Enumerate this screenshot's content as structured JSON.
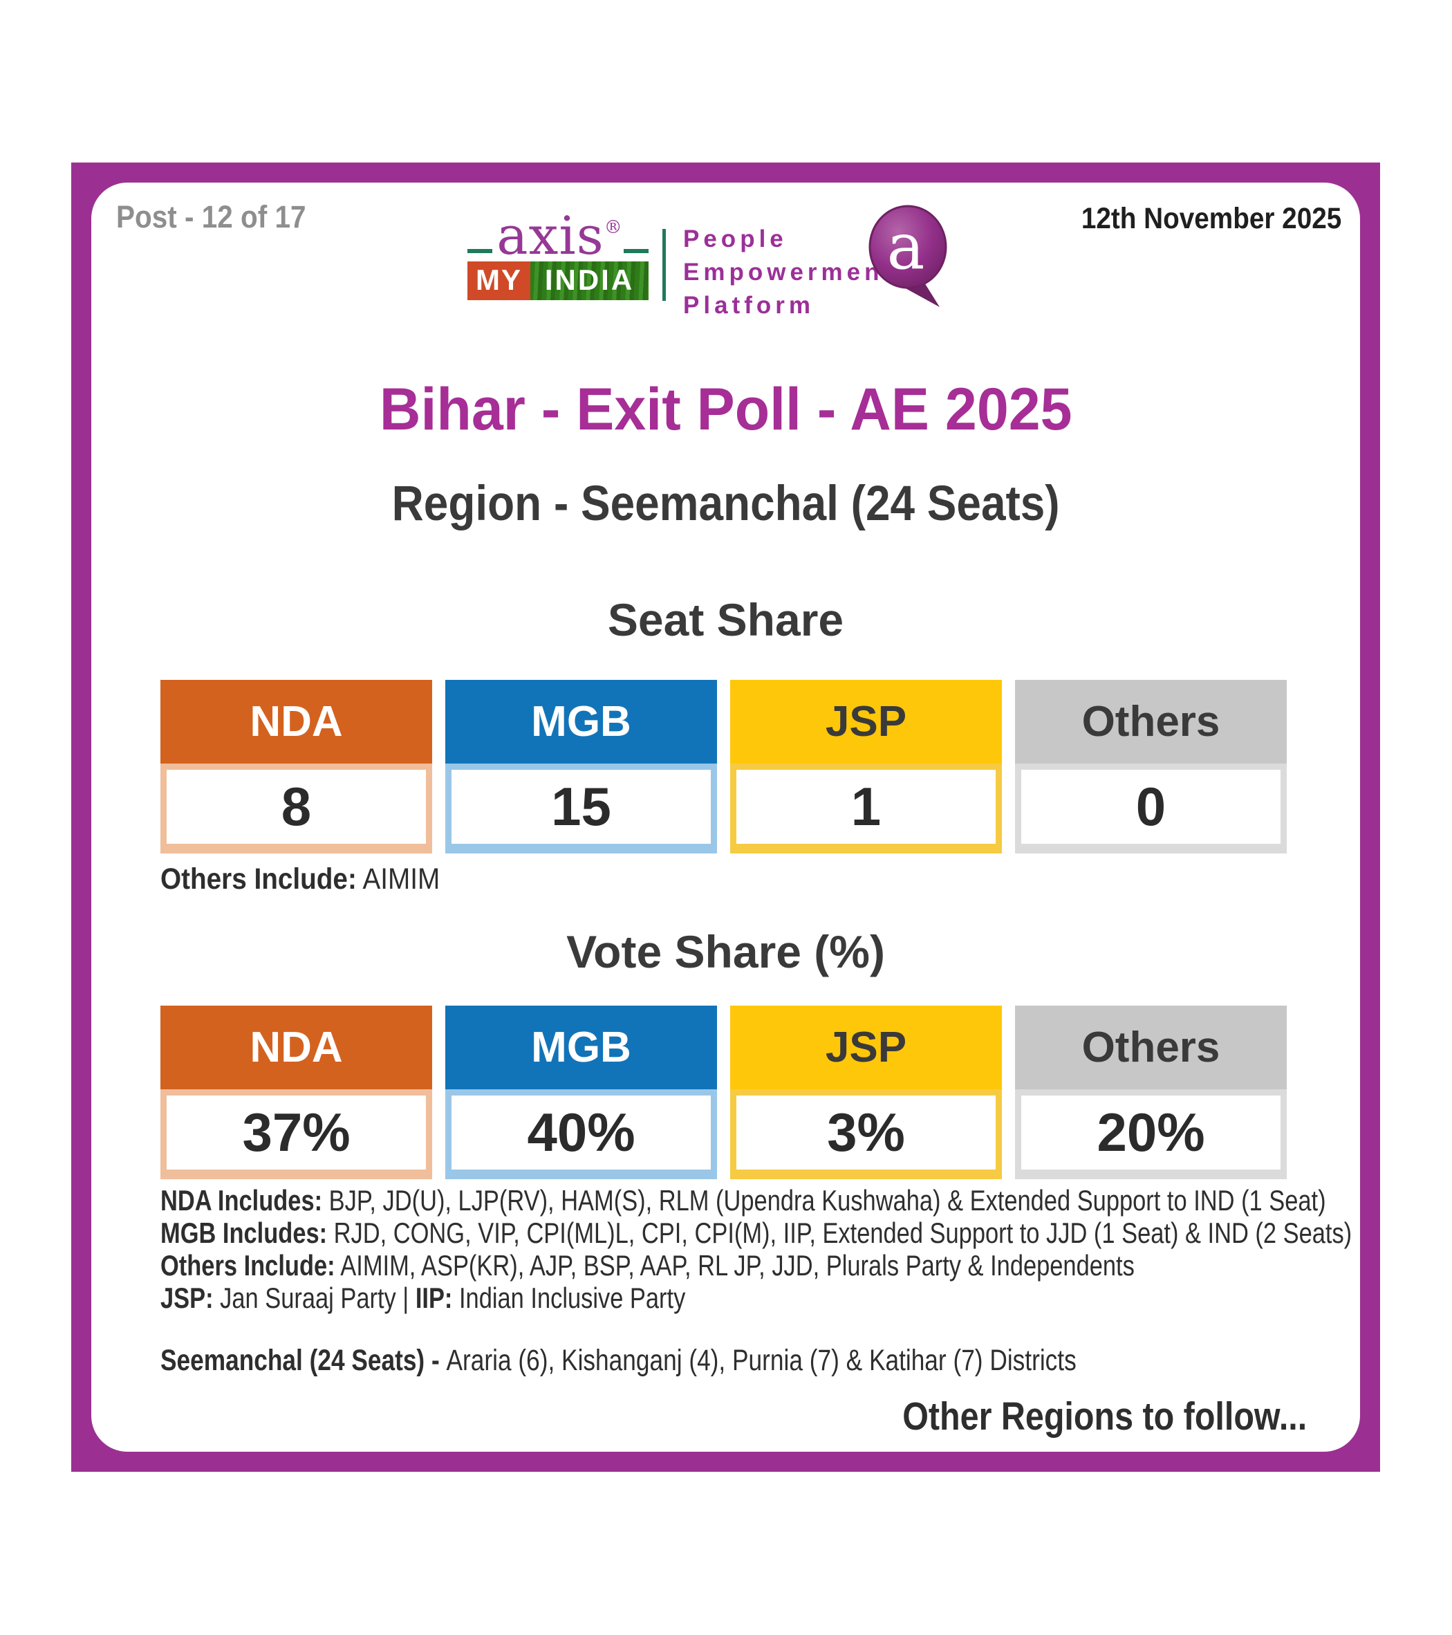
{
  "meta": {
    "post_label": "Post - 12 of 17",
    "date": "12th November 2025"
  },
  "logo": {
    "axis_word": "axis",
    "reg_mark": "®",
    "my": "MY",
    "india": "INDIA",
    "tagline": "People\nEmpowerment\nPlatform",
    "bubble_letter": "a"
  },
  "title": "Bihar - Exit Poll - AE 2025",
  "subtitle": "Region - Seemanchal (24 Seats)",
  "colors": {
    "brand_purple": "#9C3092",
    "title_purple": "#A62E96",
    "teal_green": "#1E7A5B",
    "nda_orange": "#D4621F",
    "mgb_blue": "#1274B8",
    "jsp_yellow": "#FFC709",
    "others_gray": "#C7C7C7"
  },
  "parties": [
    {
      "label": "NDA",
      "header_bg": "#D4621F",
      "header_fg": "#FFFFFF",
      "tint": "#F0BE9B"
    },
    {
      "label": "MGB",
      "header_bg": "#1274B8",
      "header_fg": "#FFFFFF",
      "tint": "#9AC7E8"
    },
    {
      "label": "JSP",
      "header_bg": "#FFC709",
      "header_fg": "#3A3A3A",
      "tint": "#F6CB43"
    },
    {
      "label": "Others",
      "header_bg": "#C7C7C7",
      "header_fg": "#3A3A3A",
      "tint": "#DBDBDB"
    }
  ],
  "seat_share": {
    "heading": "Seat Share",
    "values": [
      "8",
      "15",
      "1",
      "0"
    ],
    "note_bold": "Others Include:",
    "note_rest": " AIMIM"
  },
  "vote_share": {
    "heading": "Vote Share (%)",
    "values": [
      "37%",
      "40%",
      "3%",
      "20%"
    ]
  },
  "footnote_lines": [
    [
      [
        "b",
        "NDA Includes:"
      ],
      [
        "r",
        " BJP, JD(U), LJP(RV), HAM(S), RLM (Upendra Kushwaha) & Extended Support to IND (1 Seat)"
      ]
    ],
    [
      [
        "b",
        "MGB Includes:"
      ],
      [
        "r",
        " RJD, CONG, VIP, CPI(ML)L, CPI, CPI(M), IIP, Extended Support to JJD (1 Seat) & IND (2 Seats)"
      ]
    ],
    [
      [
        "b",
        "Others Include:"
      ],
      [
        "r",
        " AIMIM, ASP(KR), AJP, BSP, AAP, RL JP, JJD, Plurals Party & Independents"
      ]
    ],
    [
      [
        "b",
        "JSP:"
      ],
      [
        "r",
        " Jan Suraaj Party   |   "
      ],
      [
        "b",
        "IIP:"
      ],
      [
        "r",
        " Indian Inclusive Party"
      ]
    ]
  ],
  "district_line": {
    "bold": "Seemanchal (24 Seats) - ",
    "rest": "Araria (6), Kishanganj (4), Purnia (7) & Katihar (7) Districts"
  },
  "footer_note": "Other Regions to follow...",
  "chart_data": [
    {
      "type": "table",
      "title": "Seat Share",
      "categories": [
        "NDA",
        "MGB",
        "JSP",
        "Others"
      ],
      "values": [
        8,
        15,
        1,
        0
      ],
      "note": "Others Include: AIMIM",
      "total_seats": 24
    },
    {
      "type": "table",
      "title": "Vote Share (%)",
      "categories": [
        "NDA",
        "MGB",
        "JSP",
        "Others"
      ],
      "values": [
        37,
        40,
        3,
        20
      ],
      "unit": "%"
    }
  ]
}
